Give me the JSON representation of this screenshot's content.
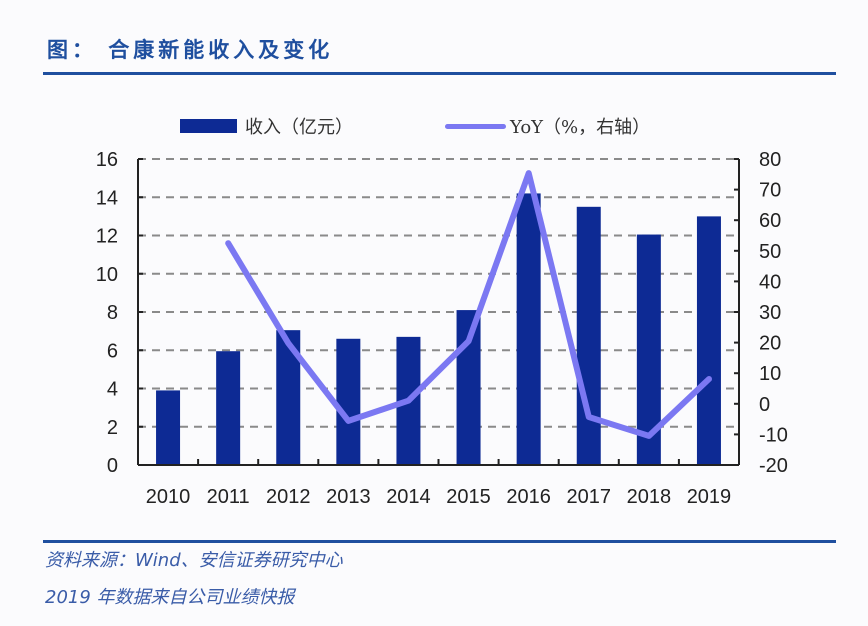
{
  "header": {
    "title": "图： 合康新能收入及变化"
  },
  "legend": {
    "bar_label": "收入（亿元）",
    "line_label": "YoY（%，右轴）"
  },
  "footer": {
    "source_line": "资料来源：Wind、安信证券研究中心",
    "note_line": "2019 年数据来自公司业绩快报"
  },
  "colors": {
    "bar": "#0d2a94",
    "line": "#7b78f2",
    "accent": "#1f4f9f",
    "grid": "#8a8a8a"
  },
  "chart_data": {
    "type": "bar+line",
    "title": "合康新能收入及变化",
    "categories": [
      "2010",
      "2011",
      "2012",
      "2013",
      "2014",
      "2015",
      "2016",
      "2017",
      "2018",
      "2019"
    ],
    "series": [
      {
        "name": "收入（亿元）",
        "type": "bar",
        "axis": "left",
        "values": [
          3.9,
          5.95,
          7.05,
          6.6,
          6.7,
          8.1,
          14.2,
          13.5,
          12.05,
          13.0
        ]
      },
      {
        "name": "YoY（%，右轴）",
        "type": "line",
        "axis": "right",
        "values": [
          null,
          52.5,
          19.8,
          -5.6,
          1.0,
          20.5,
          75.4,
          -4.3,
          -10.5,
          8.1
        ]
      }
    ],
    "left_axis": {
      "ylim": [
        0,
        16
      ],
      "ticks": [
        0,
        2,
        4,
        6,
        8,
        10,
        12,
        14,
        16
      ]
    },
    "right_axis": {
      "ylim": [
        -20,
        80
      ],
      "ticks": [
        -20,
        -10,
        0,
        10,
        20,
        30,
        40,
        50,
        60,
        70,
        80
      ]
    },
    "xlabel": "",
    "ylabel": "",
    "grid": "horizontal dashed",
    "legend_position": "top"
  }
}
